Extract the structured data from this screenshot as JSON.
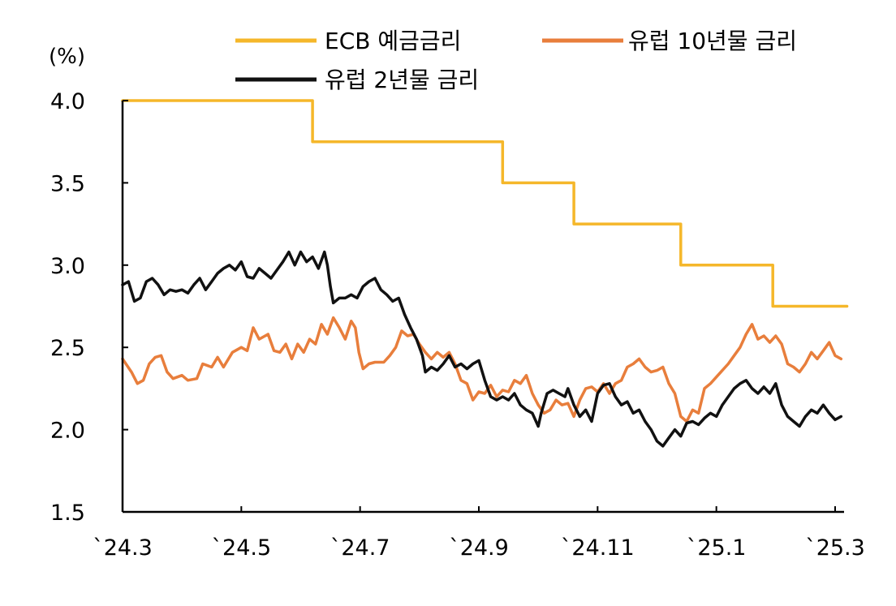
{
  "chart_data": {
    "type": "line",
    "title": "",
    "ylabel": "(%)",
    "xlabel": "",
    "ylim": [
      1.5,
      4.0
    ],
    "yticks": [
      "1.5",
      "2.0",
      "2.5",
      "3.0",
      "3.5",
      "4.0"
    ],
    "xlim": [
      0,
      12
    ],
    "xticks": [
      {
        "label": "`24.3",
        "value": 0
      },
      {
        "label": "`24.5",
        "value": 2
      },
      {
        "label": "`24.7",
        "value": 4
      },
      {
        "label": "`24.9",
        "value": 6
      },
      {
        "label": "`24.11",
        "value": 8
      },
      {
        "label": "`25.1",
        "value": 10
      },
      {
        "label": "`25.3",
        "value": 12
      }
    ],
    "legend_position": "top",
    "grid": false,
    "series": [
      {
        "name": "ECB 예금금리",
        "color": "#F5B72A",
        "step": true,
        "points": [
          [
            0,
            4.0
          ],
          [
            3.2,
            4.0
          ],
          [
            3.2,
            3.75
          ],
          [
            6.4,
            3.75
          ],
          [
            6.4,
            3.5
          ],
          [
            7.6,
            3.5
          ],
          [
            7.6,
            3.25
          ],
          [
            9.4,
            3.25
          ],
          [
            9.4,
            3.0
          ],
          [
            10.95,
            3.0
          ],
          [
            10.95,
            2.75
          ],
          [
            12.2,
            2.75
          ]
        ]
      },
      {
        "name": "유럽 10년물 금리",
        "color": "#E87E3C",
        "step": false,
        "points": [
          [
            0.0,
            2.43
          ],
          [
            0.15,
            2.35
          ],
          [
            0.25,
            2.28
          ],
          [
            0.35,
            2.3
          ],
          [
            0.45,
            2.4
          ],
          [
            0.55,
            2.44
          ],
          [
            0.65,
            2.45
          ],
          [
            0.75,
            2.35
          ],
          [
            0.85,
            2.31
          ],
          [
            1.0,
            2.33
          ],
          [
            1.1,
            2.3
          ],
          [
            1.25,
            2.31
          ],
          [
            1.35,
            2.4
          ],
          [
            1.5,
            2.38
          ],
          [
            1.6,
            2.44
          ],
          [
            1.7,
            2.38
          ],
          [
            1.85,
            2.47
          ],
          [
            2.0,
            2.5
          ],
          [
            2.1,
            2.48
          ],
          [
            2.2,
            2.62
          ],
          [
            2.3,
            2.55
          ],
          [
            2.45,
            2.58
          ],
          [
            2.55,
            2.48
          ],
          [
            2.65,
            2.47
          ],
          [
            2.75,
            2.52
          ],
          [
            2.85,
            2.43
          ],
          [
            2.95,
            2.52
          ],
          [
            3.05,
            2.47
          ],
          [
            3.15,
            2.55
          ],
          [
            3.25,
            2.52
          ],
          [
            3.35,
            2.64
          ],
          [
            3.45,
            2.58
          ],
          [
            3.55,
            2.68
          ],
          [
            3.65,
            2.62
          ],
          [
            3.75,
            2.55
          ],
          [
            3.85,
            2.66
          ],
          [
            3.92,
            2.62
          ],
          [
            3.98,
            2.47
          ],
          [
            4.05,
            2.37
          ],
          [
            4.15,
            2.4
          ],
          [
            4.25,
            2.41
          ],
          [
            4.4,
            2.41
          ],
          [
            4.5,
            2.45
          ],
          [
            4.6,
            2.5
          ],
          [
            4.7,
            2.6
          ],
          [
            4.8,
            2.57
          ],
          [
            4.9,
            2.58
          ],
          [
            5.0,
            2.52
          ],
          [
            5.1,
            2.47
          ],
          [
            5.2,
            2.43
          ],
          [
            5.3,
            2.47
          ],
          [
            5.4,
            2.44
          ],
          [
            5.5,
            2.47
          ],
          [
            5.6,
            2.4
          ],
          [
            5.7,
            2.3
          ],
          [
            5.8,
            2.28
          ],
          [
            5.9,
            2.18
          ],
          [
            6.0,
            2.23
          ],
          [
            6.1,
            2.22
          ],
          [
            6.2,
            2.27
          ],
          [
            6.3,
            2.2
          ],
          [
            6.4,
            2.24
          ],
          [
            6.5,
            2.23
          ],
          [
            6.6,
            2.3
          ],
          [
            6.7,
            2.28
          ],
          [
            6.8,
            2.33
          ],
          [
            6.9,
            2.22
          ],
          [
            7.0,
            2.15
          ],
          [
            7.1,
            2.1
          ],
          [
            7.2,
            2.12
          ],
          [
            7.3,
            2.18
          ],
          [
            7.4,
            2.15
          ],
          [
            7.5,
            2.16
          ],
          [
            7.6,
            2.08
          ],
          [
            7.7,
            2.18
          ],
          [
            7.8,
            2.25
          ],
          [
            7.9,
            2.26
          ],
          [
            8.0,
            2.23
          ],
          [
            8.1,
            2.28
          ],
          [
            8.2,
            2.22
          ],
          [
            8.3,
            2.28
          ],
          [
            8.4,
            2.3
          ],
          [
            8.5,
            2.38
          ],
          [
            8.6,
            2.4
          ],
          [
            8.7,
            2.43
          ],
          [
            8.8,
            2.38
          ],
          [
            8.9,
            2.35
          ],
          [
            9.0,
            2.36
          ],
          [
            9.1,
            2.38
          ],
          [
            9.2,
            2.28
          ],
          [
            9.3,
            2.22
          ],
          [
            9.4,
            2.08
          ],
          [
            9.5,
            2.05
          ],
          [
            9.6,
            2.12
          ],
          [
            9.7,
            2.1
          ],
          [
            9.8,
            2.25
          ],
          [
            9.9,
            2.28
          ],
          [
            10.0,
            2.32
          ],
          [
            10.1,
            2.36
          ],
          [
            10.2,
            2.4
          ],
          [
            10.3,
            2.45
          ],
          [
            10.4,
            2.5
          ],
          [
            10.5,
            2.58
          ],
          [
            10.6,
            2.64
          ],
          [
            10.7,
            2.55
          ],
          [
            10.8,
            2.57
          ],
          [
            10.9,
            2.53
          ],
          [
            11.0,
            2.57
          ],
          [
            11.1,
            2.52
          ],
          [
            11.2,
            2.4
          ],
          [
            11.3,
            2.38
          ],
          [
            11.4,
            2.35
          ],
          [
            11.5,
            2.4
          ],
          [
            11.6,
            2.47
          ],
          [
            11.7,
            2.43
          ],
          [
            11.8,
            2.48
          ],
          [
            11.9,
            2.53
          ],
          [
            12.0,
            2.45
          ],
          [
            12.1,
            2.43
          ]
        ]
      },
      {
        "name": "유럽 2년물 금리",
        "color": "#111111",
        "step": false,
        "points": [
          [
            0.0,
            2.88
          ],
          [
            0.1,
            2.9
          ],
          [
            0.2,
            2.78
          ],
          [
            0.3,
            2.8
          ],
          [
            0.4,
            2.9
          ],
          [
            0.5,
            2.92
          ],
          [
            0.6,
            2.88
          ],
          [
            0.7,
            2.82
          ],
          [
            0.8,
            2.85
          ],
          [
            0.9,
            2.84
          ],
          [
            1.0,
            2.85
          ],
          [
            1.1,
            2.83
          ],
          [
            1.2,
            2.88
          ],
          [
            1.3,
            2.92
          ],
          [
            1.4,
            2.85
          ],
          [
            1.5,
            2.9
          ],
          [
            1.6,
            2.95
          ],
          [
            1.7,
            2.98
          ],
          [
            1.8,
            3.0
          ],
          [
            1.9,
            2.97
          ],
          [
            2.0,
            3.02
          ],
          [
            2.1,
            2.93
          ],
          [
            2.2,
            2.92
          ],
          [
            2.3,
            2.98
          ],
          [
            2.4,
            2.95
          ],
          [
            2.5,
            2.92
          ],
          [
            2.6,
            2.97
          ],
          [
            2.7,
            3.02
          ],
          [
            2.8,
            3.08
          ],
          [
            2.9,
            3.0
          ],
          [
            3.0,
            3.08
          ],
          [
            3.1,
            3.02
          ],
          [
            3.2,
            3.05
          ],
          [
            3.3,
            2.98
          ],
          [
            3.4,
            3.08
          ],
          [
            3.45,
            3.0
          ],
          [
            3.5,
            2.87
          ],
          [
            3.55,
            2.77
          ],
          [
            3.65,
            2.8
          ],
          [
            3.75,
            2.8
          ],
          [
            3.85,
            2.82
          ],
          [
            3.95,
            2.8
          ],
          [
            4.05,
            2.87
          ],
          [
            4.15,
            2.9
          ],
          [
            4.25,
            2.92
          ],
          [
            4.35,
            2.85
          ],
          [
            4.45,
            2.82
          ],
          [
            4.55,
            2.78
          ],
          [
            4.65,
            2.8
          ],
          [
            4.75,
            2.7
          ],
          [
            4.85,
            2.62
          ],
          [
            4.95,
            2.55
          ],
          [
            5.05,
            2.45
          ],
          [
            5.1,
            2.35
          ],
          [
            5.2,
            2.38
          ],
          [
            5.3,
            2.36
          ],
          [
            5.4,
            2.4
          ],
          [
            5.5,
            2.45
          ],
          [
            5.6,
            2.38
          ],
          [
            5.7,
            2.4
          ],
          [
            5.8,
            2.37
          ],
          [
            5.9,
            2.4
          ],
          [
            6.0,
            2.42
          ],
          [
            6.1,
            2.3
          ],
          [
            6.2,
            2.2
          ],
          [
            6.3,
            2.18
          ],
          [
            6.4,
            2.2
          ],
          [
            6.5,
            2.18
          ],
          [
            6.6,
            2.22
          ],
          [
            6.7,
            2.15
          ],
          [
            6.8,
            2.12
          ],
          [
            6.9,
            2.1
          ],
          [
            7.0,
            2.02
          ],
          [
            7.05,
            2.1
          ],
          [
            7.15,
            2.22
          ],
          [
            7.25,
            2.24
          ],
          [
            7.35,
            2.22
          ],
          [
            7.45,
            2.2
          ],
          [
            7.5,
            2.25
          ],
          [
            7.6,
            2.15
          ],
          [
            7.7,
            2.08
          ],
          [
            7.8,
            2.12
          ],
          [
            7.9,
            2.05
          ],
          [
            8.0,
            2.22
          ],
          [
            8.1,
            2.27
          ],
          [
            8.2,
            2.28
          ],
          [
            8.3,
            2.2
          ],
          [
            8.4,
            2.15
          ],
          [
            8.5,
            2.17
          ],
          [
            8.6,
            2.1
          ],
          [
            8.7,
            2.12
          ],
          [
            8.8,
            2.05
          ],
          [
            8.9,
            2.0
          ],
          [
            9.0,
            1.93
          ],
          [
            9.1,
            1.9
          ],
          [
            9.2,
            1.95
          ],
          [
            9.3,
            2.0
          ],
          [
            9.4,
            1.96
          ],
          [
            9.5,
            2.04
          ],
          [
            9.6,
            2.05
          ],
          [
            9.7,
            2.03
          ],
          [
            9.8,
            2.07
          ],
          [
            9.9,
            2.1
          ],
          [
            10.0,
            2.08
          ],
          [
            10.1,
            2.15
          ],
          [
            10.2,
            2.2
          ],
          [
            10.3,
            2.25
          ],
          [
            10.4,
            2.28
          ],
          [
            10.5,
            2.3
          ],
          [
            10.6,
            2.25
          ],
          [
            10.7,
            2.22
          ],
          [
            10.8,
            2.26
          ],
          [
            10.9,
            2.22
          ],
          [
            11.0,
            2.28
          ],
          [
            11.1,
            2.15
          ],
          [
            11.2,
            2.08
          ],
          [
            11.3,
            2.05
          ],
          [
            11.4,
            2.02
          ],
          [
            11.5,
            2.08
          ],
          [
            11.6,
            2.12
          ],
          [
            11.7,
            2.1
          ],
          [
            11.8,
            2.15
          ],
          [
            11.9,
            2.1
          ],
          [
            12.0,
            2.06
          ],
          [
            12.1,
            2.08
          ]
        ]
      }
    ]
  }
}
